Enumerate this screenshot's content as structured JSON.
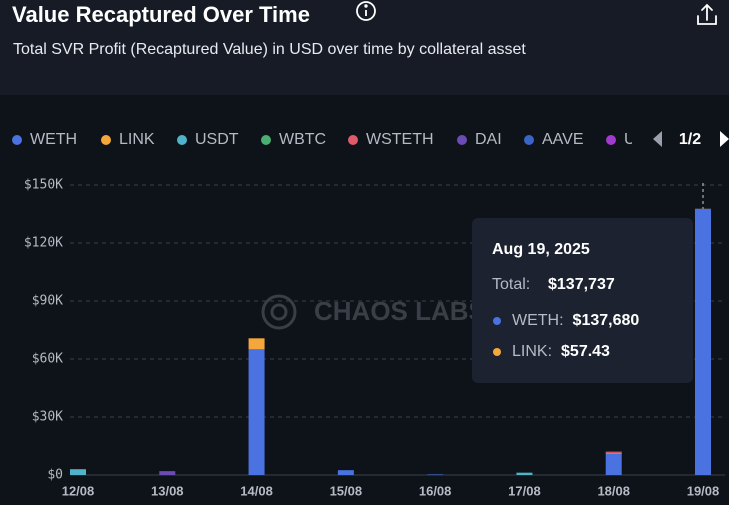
{
  "header": {
    "title": "Value Recaptured Over Time",
    "subtitle": "Total SVR Profit (Recaptured Value) in USD over time by collateral asset"
  },
  "pager": "1/2",
  "watermark": "CHAOS LABS",
  "chart_data": {
    "type": "bar",
    "stacked": true,
    "categories": [
      "12/08",
      "13/08",
      "14/08",
      "15/08",
      "16/08",
      "17/08",
      "18/08",
      "19/08"
    ],
    "series": [
      {
        "name": "WETH",
        "color": "#4a72e0",
        "values": [
          0,
          0,
          65000,
          2500,
          300,
          0,
          11000,
          137680
        ]
      },
      {
        "name": "LINK",
        "color": "#f5a73b",
        "values": [
          0,
          0,
          5700,
          0,
          0,
          0,
          500,
          57.43
        ]
      },
      {
        "name": "USDT",
        "color": "#4fb3c9",
        "values": [
          3000,
          0,
          0,
          0,
          0,
          1200,
          0,
          0
        ]
      },
      {
        "name": "WBTC",
        "color": "#4caf72",
        "values": [
          0,
          0,
          0,
          0,
          0,
          0,
          0,
          0
        ]
      },
      {
        "name": "WSTETH",
        "color": "#e05a6b",
        "values": [
          0,
          0,
          0,
          0,
          0,
          0,
          600,
          0
        ]
      },
      {
        "name": "DAI",
        "color": "#6b4bb5",
        "values": [
          0,
          2000,
          0,
          0,
          0,
          0,
          0,
          0
        ]
      },
      {
        "name": "AAVE",
        "color": "#3a64c8",
        "values": [
          0,
          0,
          0,
          0,
          0,
          0,
          0,
          0
        ]
      },
      {
        "name": "U",
        "color": "#a33ad0",
        "values": [
          0,
          0,
          0,
          0,
          0,
          0,
          0,
          0
        ]
      }
    ],
    "ylim": [
      0,
      150000
    ],
    "yticks": [
      {
        "value": 0,
        "label": "$0"
      },
      {
        "value": 30000,
        "label": "$30K"
      },
      {
        "value": 60000,
        "label": "$60K"
      },
      {
        "value": 90000,
        "label": "$90K"
      },
      {
        "value": 120000,
        "label": "$120K"
      },
      {
        "value": 150000,
        "label": "$150K"
      }
    ],
    "grid": true
  },
  "tooltip": {
    "date": "Aug 19, 2025",
    "total_label": "Total:",
    "total": "$137,737",
    "items": [
      {
        "label": "WETH:",
        "value": "$137,680",
        "color": "#4a72e0"
      },
      {
        "label": "LINK:",
        "value": "$57.43",
        "color": "#f5a73b"
      }
    ]
  }
}
